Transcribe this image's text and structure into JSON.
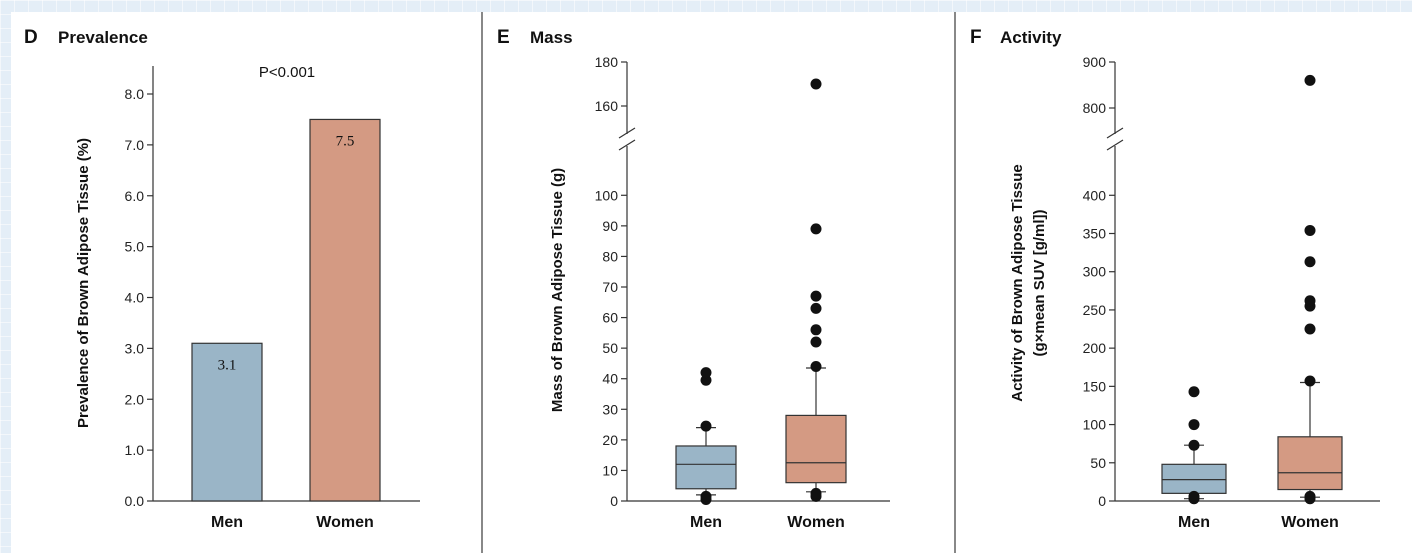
{
  "colors": {
    "men": "#9ab5c7",
    "women": "#d49a83",
    "background": "#e4eef7"
  },
  "chart_data": [
    {
      "type": "bar",
      "panel": "D",
      "title": "Prevalence",
      "ylabel": "Prevalence of Brown Adipose Tissue (%)",
      "categories": [
        "Men",
        "Women"
      ],
      "values": [
        3.1,
        7.5
      ],
      "value_labels": [
        "3.1",
        "7.5"
      ],
      "annotation": "P<0.001",
      "ylim": [
        0,
        8.5
      ],
      "yticks": [
        0,
        1,
        2,
        3,
        4,
        5,
        6,
        7,
        8
      ],
      "ytick_labels": [
        "0.0",
        "1.0",
        "2.0",
        "3.0",
        "4.0",
        "5.0",
        "6.0",
        "7.0",
        "8.0"
      ],
      "grid": false
    },
    {
      "type": "box",
      "panel": "E",
      "title": "Mass",
      "ylabel": "Mass of Brown Adipose Tissue (g)",
      "categories": [
        "Men",
        "Women"
      ],
      "axis_break": {
        "lower": [
          0,
          105
        ],
        "upper": [
          150,
          180
        ]
      },
      "yticks": [
        0,
        10,
        20,
        30,
        40,
        50,
        60,
        70,
        80,
        90,
        100,
        160,
        180
      ],
      "ytick_labels": [
        "0",
        "10",
        "20",
        "30",
        "40",
        "50",
        "60",
        "70",
        "80",
        "90",
        "100",
        "160",
        "180"
      ],
      "series": [
        {
          "name": "Men",
          "whisker_low": 2,
          "q1": 4,
          "median": 12,
          "q3": 18,
          "whisker_high": 24,
          "outliers": [
            0.5,
            1.5,
            39.5,
            42,
            24.5
          ]
        },
        {
          "name": "Women",
          "whisker_low": 3,
          "q1": 6,
          "median": 12.5,
          "q3": 28,
          "whisker_high": 43.5,
          "outliers": [
            1.5,
            2.5,
            44,
            52,
            56,
            63,
            67,
            89,
            170
          ]
        }
      ],
      "grid": false
    },
    {
      "type": "box",
      "panel": "F",
      "title": "Activity",
      "ylabel": "Activity of Brown Adipose Tissue",
      "ylabel2": "(g×mean SUV [g/ml])",
      "categories": [
        "Men",
        "Women"
      ],
      "axis_break": {
        "lower": [
          0,
          420
        ],
        "upper": [
          750,
          900
        ]
      },
      "yticks": [
        0,
        50,
        100,
        150,
        200,
        250,
        300,
        350,
        400,
        800,
        900
      ],
      "ytick_labels": [
        "0",
        "50",
        "100",
        "150",
        "200",
        "250",
        "300",
        "350",
        "400",
        "800",
        "900"
      ],
      "series": [
        {
          "name": "Men",
          "whisker_low": 3,
          "q1": 10,
          "median": 28,
          "q3": 48,
          "whisker_high": 73,
          "outliers": [
            3,
            6,
            73,
            100,
            143
          ]
        },
        {
          "name": "Women",
          "whisker_low": 5,
          "q1": 15,
          "median": 37,
          "q3": 84,
          "whisker_high": 155,
          "outliers": [
            3,
            6,
            157,
            225,
            255,
            262,
            313,
            354,
            860
          ]
        }
      ],
      "grid": false
    }
  ]
}
